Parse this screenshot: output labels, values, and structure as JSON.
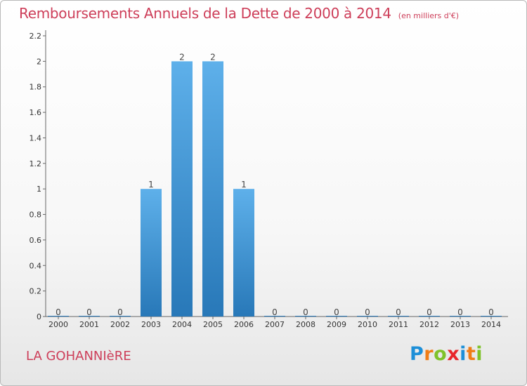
{
  "header": {
    "title": "Remboursements Annuels de la Dette de 2000 à 2014",
    "unit": "(en milliers d'€)"
  },
  "footer": {
    "place": "LA GOHANNIèRE",
    "brand": [
      "P",
      "r",
      "o",
      "x",
      "i",
      "t",
      "i"
    ]
  },
  "colors": {
    "title": "#cd3e59",
    "bar_top": "#5eb0ea",
    "bar_bottom": "#2878b8",
    "brand": [
      "#1d8fd8",
      "#f07d16",
      "#7fc22a",
      "#e8262b",
      "#1d8fd8",
      "#f07d16",
      "#7fc22a"
    ]
  },
  "chart_data": {
    "type": "bar",
    "title": "Remboursements Annuels de la Dette de 2000 à 2014",
    "xlabel": "",
    "ylabel": "",
    "categories": [
      "2000",
      "2001",
      "2002",
      "2003",
      "2004",
      "2005",
      "2006",
      "2007",
      "2008",
      "2009",
      "2010",
      "2011",
      "2012",
      "2013",
      "2014"
    ],
    "values": [
      0,
      0,
      0,
      1,
      2,
      2,
      1,
      0,
      0,
      0,
      0,
      0,
      0,
      0,
      0
    ],
    "data_labels": [
      "0",
      "0",
      "0",
      "1",
      "2",
      "2",
      "1",
      "0",
      "0",
      "0",
      "0",
      "0",
      "0",
      "0",
      "0"
    ],
    "ylim": [
      0,
      2.2
    ],
    "yticks": [
      0,
      0.2,
      0.4,
      0.6,
      0.8,
      1,
      1.2,
      1.4,
      1.6,
      1.8,
      2,
      2.2
    ],
    "ytick_labels": [
      "0",
      "0.2",
      "0.4",
      "0.6",
      "0.8",
      "1",
      "1.2",
      "1.4",
      "1.6",
      "1.8",
      "2",
      "2.2"
    ],
    "grid": false,
    "legend": "none"
  }
}
